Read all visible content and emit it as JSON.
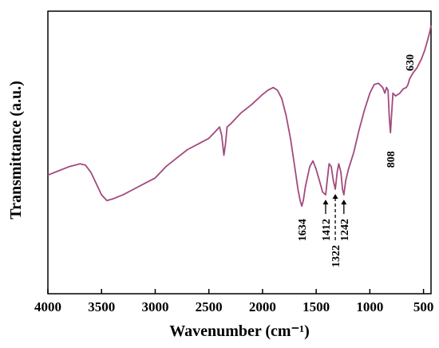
{
  "chart_data": {
    "type": "line",
    "title": "",
    "xlabel": "Wavenumber (cm⁻¹)",
    "ylabel": "Transmittance (a.u.)",
    "xlim": [
      4000,
      430
    ],
    "x_reversed": true,
    "ylim": [
      0,
      100
    ],
    "y_tick_labels": false,
    "x_ticks": [
      {
        "value": 4000,
        "label": "4000"
      },
      {
        "value": 3500,
        "label": "3500"
      },
      {
        "value": 3000,
        "label": "3000"
      },
      {
        "value": 2500,
        "label": "2500"
      },
      {
        "value": 2000,
        "label": "2000"
      },
      {
        "value": 1500,
        "label": "1500"
      },
      {
        "value": 1000,
        "label": "1000"
      },
      {
        "value": 500,
        "label": "500"
      }
    ],
    "series": [
      {
        "color": "#a24a7e",
        "points": [
          [
            4000,
            42
          ],
          [
            3900,
            43.5
          ],
          [
            3800,
            45
          ],
          [
            3700,
            46
          ],
          [
            3650,
            45.5
          ],
          [
            3600,
            43
          ],
          [
            3550,
            39
          ],
          [
            3500,
            35
          ],
          [
            3450,
            33
          ],
          [
            3400,
            33.5
          ],
          [
            3300,
            35
          ],
          [
            3200,
            37
          ],
          [
            3100,
            39
          ],
          [
            3000,
            41
          ],
          [
            2900,
            45
          ],
          [
            2800,
            48
          ],
          [
            2700,
            51
          ],
          [
            2600,
            53
          ],
          [
            2500,
            55
          ],
          [
            2450,
            57
          ],
          [
            2400,
            59
          ],
          [
            2380,
            56
          ],
          [
            2360,
            49
          ],
          [
            2345,
            53
          ],
          [
            2330,
            59
          ],
          [
            2300,
            60
          ],
          [
            2200,
            64
          ],
          [
            2100,
            67
          ],
          [
            2000,
            70.5
          ],
          [
            1950,
            72
          ],
          [
            1900,
            73
          ],
          [
            1860,
            72
          ],
          [
            1820,
            69
          ],
          [
            1780,
            63
          ],
          [
            1740,
            55
          ],
          [
            1700,
            45
          ],
          [
            1670,
            37
          ],
          [
            1650,
            33
          ],
          [
            1634,
            31
          ],
          [
            1620,
            33
          ],
          [
            1600,
            38
          ],
          [
            1560,
            45
          ],
          [
            1530,
            47
          ],
          [
            1500,
            44
          ],
          [
            1470,
            40
          ],
          [
            1440,
            36
          ],
          [
            1412,
            35
          ],
          [
            1395,
            41
          ],
          [
            1380,
            46
          ],
          [
            1360,
            45
          ],
          [
            1340,
            40
          ],
          [
            1322,
            37
          ],
          [
            1305,
            43
          ],
          [
            1290,
            46
          ],
          [
            1270,
            43
          ],
          [
            1255,
            37
          ],
          [
            1242,
            35
          ],
          [
            1225,
            40
          ],
          [
            1200,
            44
          ],
          [
            1150,
            50
          ],
          [
            1100,
            58
          ],
          [
            1050,
            65
          ],
          [
            1000,
            71
          ],
          [
            960,
            74
          ],
          [
            920,
            74.5
          ],
          [
            880,
            73
          ],
          [
            860,
            71
          ],
          [
            845,
            73
          ],
          [
            830,
            72
          ],
          [
            818,
            62
          ],
          [
            808,
            57
          ],
          [
            798,
            63
          ],
          [
            785,
            71
          ],
          [
            760,
            70
          ],
          [
            720,
            71
          ],
          [
            690,
            72.5
          ],
          [
            660,
            73
          ],
          [
            645,
            74
          ],
          [
            630,
            76
          ],
          [
            600,
            78
          ],
          [
            560,
            80
          ],
          [
            520,
            83
          ],
          [
            490,
            86
          ],
          [
            460,
            90
          ],
          [
            440,
            93
          ],
          [
            430,
            95
          ]
        ]
      }
    ],
    "annotations": [
      {
        "text": "1634",
        "x": 1634,
        "y": 31,
        "arrow": "none"
      },
      {
        "text": "1412",
        "x": 1412,
        "y": 35,
        "arrow": "up"
      },
      {
        "text": "1322",
        "x": 1322,
        "y": 37,
        "arrow": "up-dashed"
      },
      {
        "text": "1242",
        "x": 1242,
        "y": 35,
        "arrow": "up"
      },
      {
        "text": "808",
        "x": 808,
        "y": 57,
        "arrow": "none"
      },
      {
        "text": "630",
        "x": 630,
        "y": 76,
        "arrow": "none"
      }
    ]
  }
}
